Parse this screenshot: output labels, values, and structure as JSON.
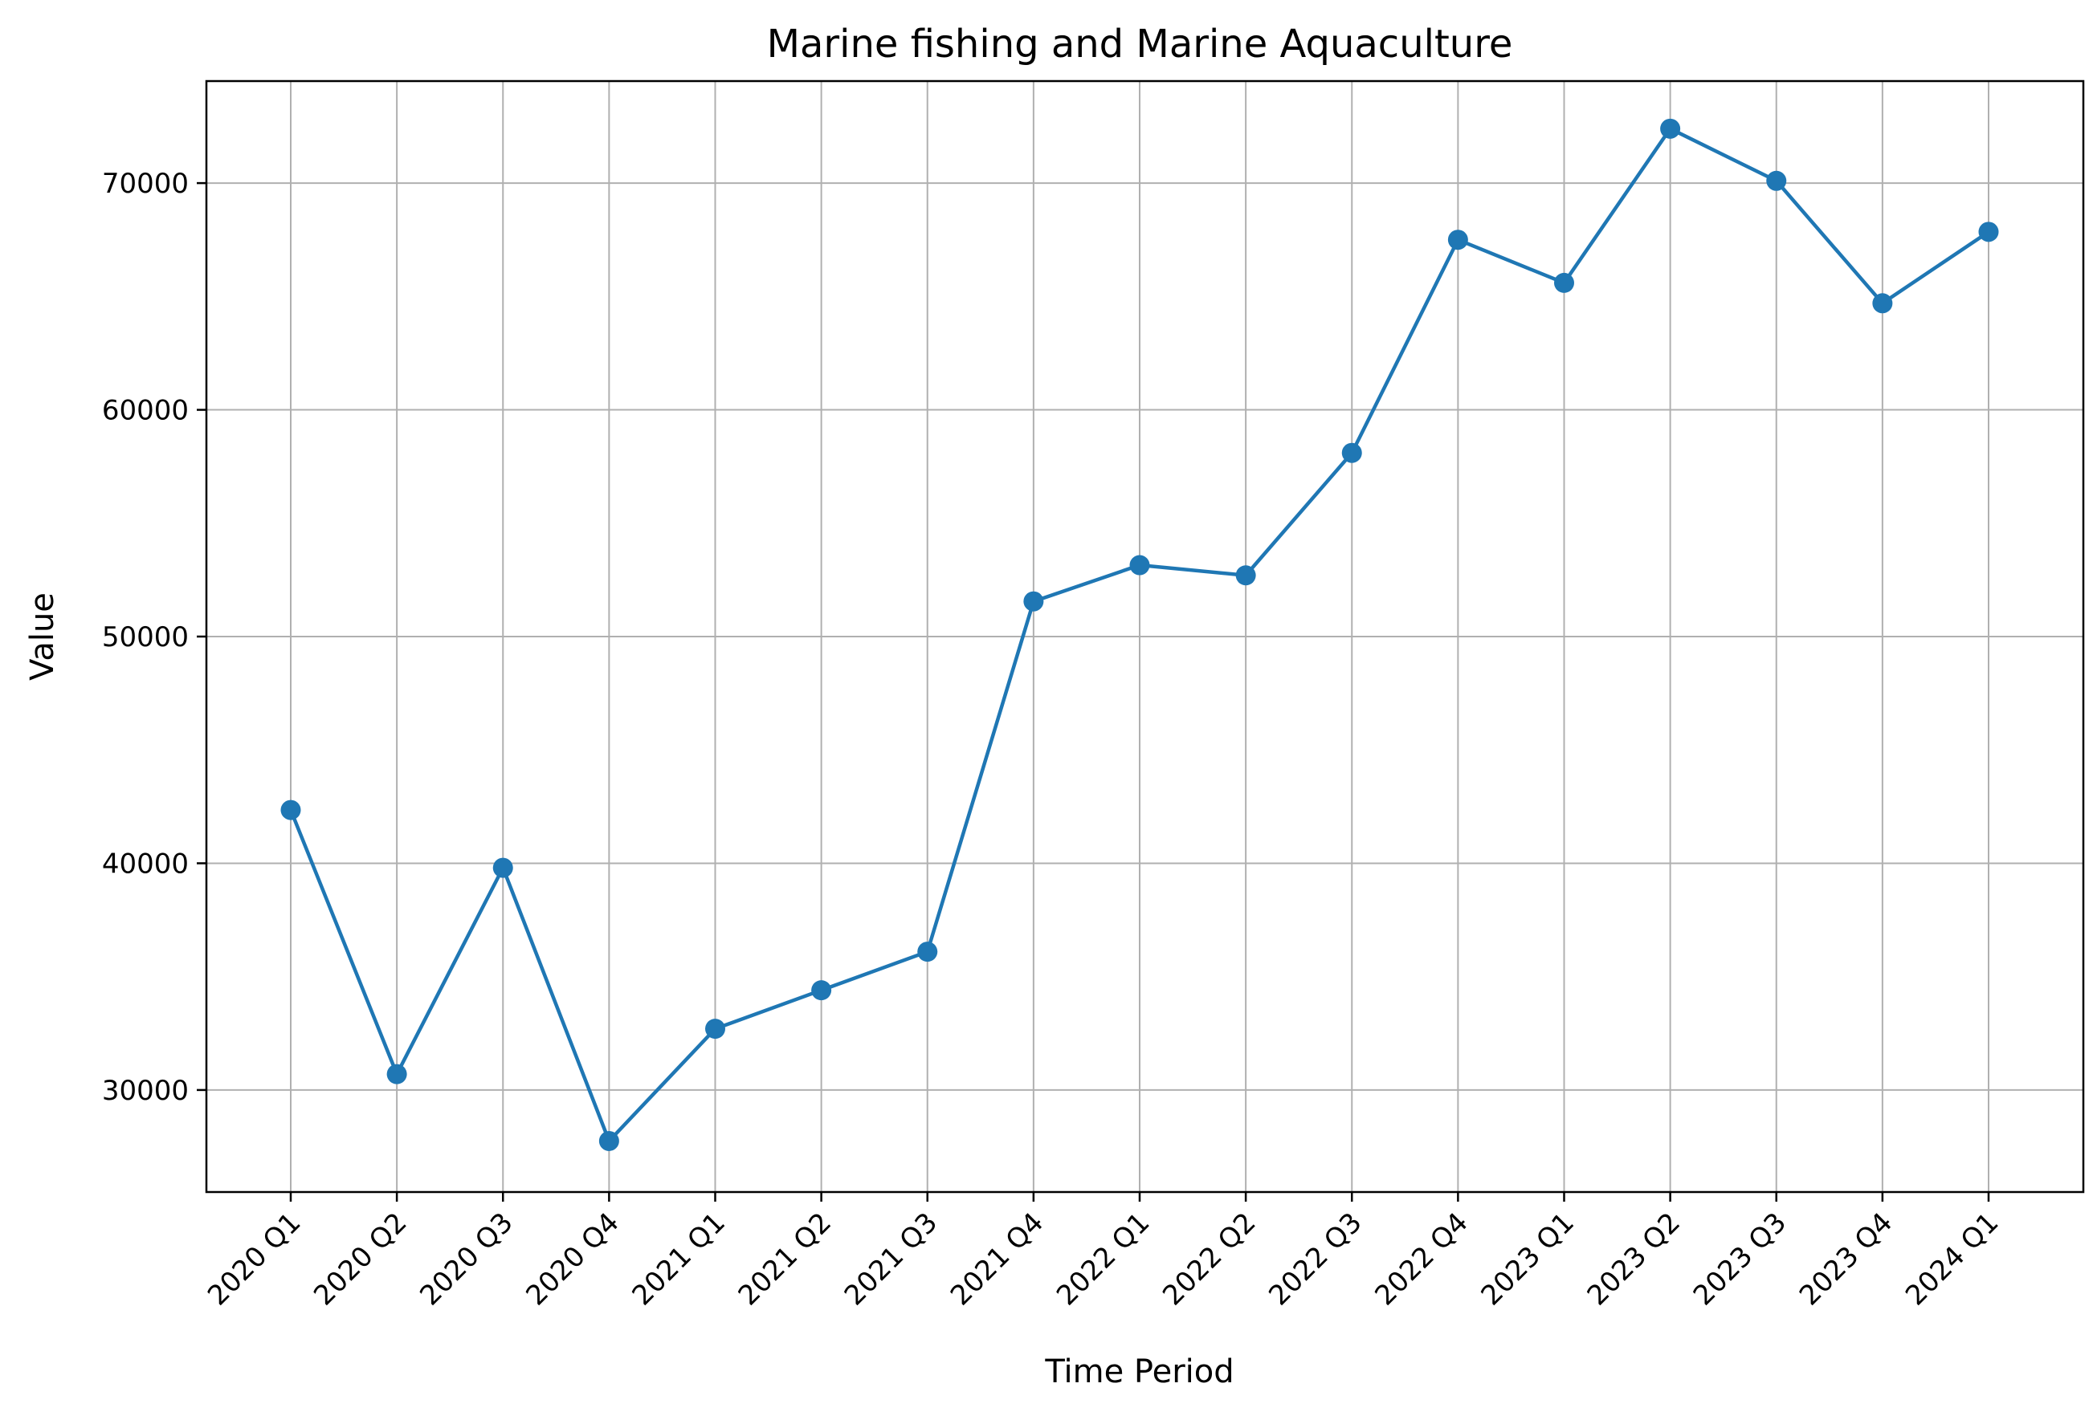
{
  "chart_data": {
    "type": "line",
    "title": "Marine fishing and Marine Aquaculture",
    "xlabel": "Time Period",
    "ylabel": "Value",
    "categories": [
      "2020 Q1",
      "2020 Q2",
      "2020 Q3",
      "2020 Q4",
      "2021 Q1",
      "2021 Q2",
      "2021 Q3",
      "2021 Q4",
      "2022 Q1",
      "2022 Q2",
      "2022 Q3",
      "2022 Q4",
      "2023 Q1",
      "2023 Q2",
      "2023 Q3",
      "2023 Q4",
      "2024 Q1"
    ],
    "series": [
      {
        "values": [
          42350,
          30700,
          39800,
          27750,
          32700,
          34400,
          36100,
          51550,
          53150,
          52700,
          58100,
          67500,
          65600,
          72400,
          70100,
          64700,
          67850
        ]
      }
    ],
    "y_ticks": [
      "30000",
      "40000",
      "50000",
      "60000",
      "70000"
    ],
    "ylim": [
      25500,
      74500
    ],
    "grid": true,
    "line_color": "#1f77b4",
    "marker": "circle"
  }
}
